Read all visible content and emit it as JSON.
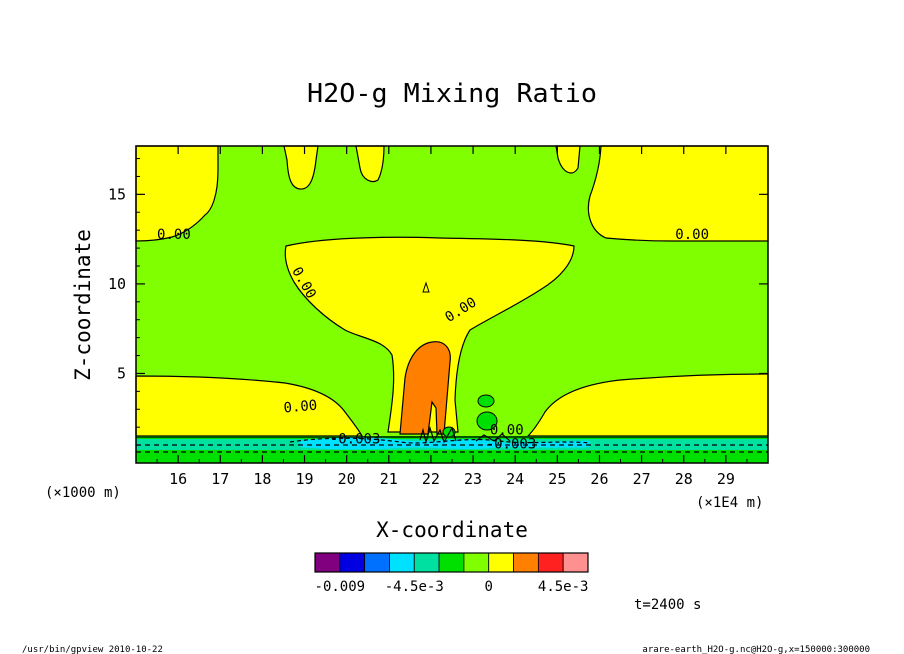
{
  "chart_data": {
    "type": "contour",
    "title": "H2O-g Mixing Ratio",
    "xlabel": "X-coordinate",
    "ylabel": "Z-coordinate",
    "x_scale_label": "(×1E4 m)",
    "y_scale_label": "(×1000 m)",
    "xlim": [
      15.0,
      30.0
    ],
    "ylim": [
      0.0,
      17.7
    ],
    "x_ticks": [
      "16",
      "17",
      "18",
      "19",
      "20",
      "21",
      "22",
      "23",
      "24",
      "25",
      "26",
      "27",
      "28",
      "29"
    ],
    "y_ticks": [
      "5",
      "10",
      "15"
    ],
    "x_tick_values": [
      16,
      17,
      18,
      19,
      20,
      21,
      22,
      23,
      24,
      25,
      26,
      27,
      28,
      29
    ],
    "y_tick_values": [
      5,
      10,
      15
    ],
    "contour_labels": [
      {
        "text": "0.00",
        "x": 15.9,
        "y": 12.5,
        "angle": 0
      },
      {
        "text": "0.00",
        "x": 28.2,
        "y": 12.5,
        "angle": 0
      },
      {
        "text": "0.00",
        "x": 19.0,
        "y": 9.8,
        "angle": 60
      },
      {
        "text": "0.00",
        "x": 22.7,
        "y": 8.3,
        "angle": -32
      },
      {
        "text": "0.00",
        "x": 18.9,
        "y": 2.9,
        "angle": -5
      },
      {
        "text": "0.00",
        "x": 23.8,
        "y": 1.6,
        "angle": 0
      },
      {
        "text": "-0.003",
        "x": 20.2,
        "y": 1.1,
        "angle": 0
      },
      {
        "text": "-0.003",
        "x": 23.9,
        "y": 0.8,
        "angle": 0
      }
    ],
    "colorbar": {
      "colors": [
        "#800080",
        "#0000e0",
        "#0070ff",
        "#00e0ff",
        "#00e0a0",
        "#00e000",
        "#80ff00",
        "#ffff00",
        "#ff8000",
        "#ff2020",
        "#ff9090"
      ],
      "labels": [
        "-0.009",
        "-4.5e-3",
        "0",
        "4.5e-3"
      ],
      "label_values": [
        -0.009,
        -0.0045,
        0,
        0.0045
      ],
      "levels_min": -0.0105,
      "levels_max": 0.006
    },
    "time_label": "t=2400 s",
    "footer_left": "/usr/bin/gpview  2010-10-22",
    "footer_right": "arare-earth_H2O-g.nc@H2O-g,x=150000:300000"
  }
}
